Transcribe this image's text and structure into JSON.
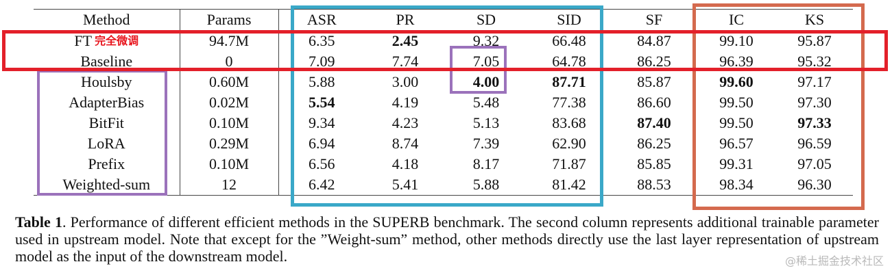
{
  "table": {
    "headers": [
      "Method",
      "Params",
      "ASR",
      "PR",
      "SD",
      "SID",
      "SF",
      "IC",
      "KS"
    ],
    "rows": [
      {
        "method": "FT",
        "note": "完全微调",
        "params": "94.7M",
        "asr": "6.35",
        "pr": "2.45",
        "sd": "9.32",
        "sid": "66.48",
        "sf": "84.87",
        "ic": "99.10",
        "ks": "95.87"
      },
      {
        "method": "Baseline",
        "params": "0",
        "asr": "7.09",
        "pr": "7.74",
        "sd": "7.05",
        "sid": "64.78",
        "sf": "86.25",
        "ic": "96.39",
        "ks": "95.32"
      },
      {
        "method": "Houlsby",
        "params": "0.60M",
        "asr": "5.88",
        "pr": "3.00",
        "sd": "4.00",
        "sid": "87.71",
        "sf": "85.87",
        "ic": "99.60",
        "ks": "97.17"
      },
      {
        "method": "AdapterBias",
        "params": "0.02M",
        "asr": "5.54",
        "pr": "4.19",
        "sd": "5.48",
        "sid": "77.38",
        "sf": "86.60",
        "ic": "99.50",
        "ks": "97.30"
      },
      {
        "method": "BitFit",
        "params": "0.10M",
        "asr": "9.34",
        "pr": "4.23",
        "sd": "5.13",
        "sid": "83.68",
        "sf": "87.40",
        "ic": "99.50",
        "ks": "97.33"
      },
      {
        "method": "LoRA",
        "params": "0.29M",
        "asr": "6.94",
        "pr": "8.74",
        "sd": "7.39",
        "sid": "62.90",
        "sf": "86.25",
        "ic": "96.57",
        "ks": "96.59"
      },
      {
        "method": "Prefix",
        "params": "0.10M",
        "asr": "6.56",
        "pr": "4.18",
        "sd": "8.17",
        "sid": "71.87",
        "sf": "85.85",
        "ic": "99.31",
        "ks": "97.05"
      },
      {
        "method": "Weighted-sum",
        "params": "12",
        "asr": "6.42",
        "pr": "5.41",
        "sd": "5.88",
        "sid": "81.42",
        "sf": "88.53",
        "ic": "98.34",
        "ks": "96.30"
      }
    ]
  },
  "caption": {
    "label": "Table 1",
    "text": ".  Performance of different efficient methods in the SUPERB benchmark.  The second column represents additional trainable parameter used in upstream model. Note that except for the ”Weight-sum” method, other methods directly use the last layer representation of upstream model as the input of the downstream model."
  },
  "annotation_colors": {
    "red": "#e3202a",
    "blue": "#3aa8c8",
    "orange": "#d46a4e",
    "purple": "#9b72bb"
  },
  "watermark": "@稀土掘金技术社区"
}
